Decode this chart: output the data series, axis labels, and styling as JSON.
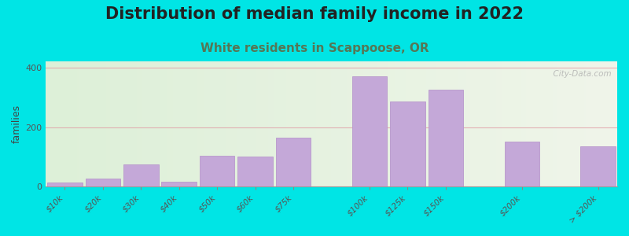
{
  "title": "Distribution of median family income in 2022",
  "subtitle": "White residents in Scappoose, OR",
  "ylabel": "families",
  "background_outer": "#00e5e5",
  "background_inner_left": "#ddf0d8",
  "background_inner_right": "#f0f5ea",
  "bar_color": "#c4a8d8",
  "bar_edge_color": "#b898cc",
  "grid_color": "#e0a0a8",
  "categories": [
    "$10k",
    "$20k",
    "$30k",
    "$40k",
    "$50k",
    "$60k",
    "$75k",
    "$100k",
    "$125k",
    "$150k",
    "$200k",
    "> $200k"
  ],
  "values": [
    15,
    28,
    75,
    18,
    105,
    100,
    165,
    370,
    285,
    325,
    150,
    135
  ],
  "bar_widths": [
    1,
    1,
    1,
    1,
    1,
    1,
    1,
    1,
    1,
    1,
    1,
    1
  ],
  "positions": [
    0,
    1,
    2,
    3,
    4,
    5,
    6,
    8,
    9,
    10,
    12,
    14
  ],
  "ylim": [
    0,
    420
  ],
  "yticks": [
    0,
    200,
    400
  ],
  "title_fontsize": 15,
  "subtitle_fontsize": 11,
  "subtitle_color": "#557755",
  "watermark": "  City-Data.com"
}
